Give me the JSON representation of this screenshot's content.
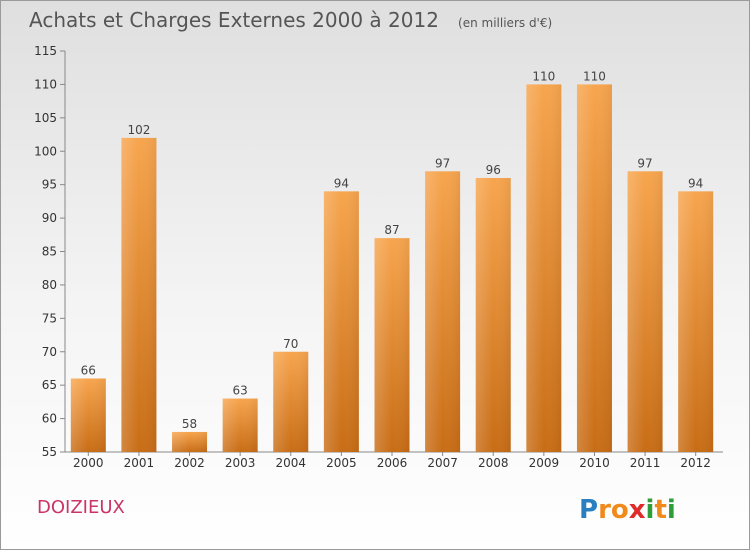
{
  "chart_data": {
    "type": "bar",
    "title": "Achats et Charges Externes 2000 à 2012",
    "subtitle": "(en milliers d'€)",
    "categories": [
      "2000",
      "2001",
      "2002",
      "2003",
      "2004",
      "2005",
      "2006",
      "2007",
      "2008",
      "2009",
      "2010",
      "2011",
      "2012"
    ],
    "values": [
      66,
      102,
      58,
      63,
      70,
      94,
      87,
      97,
      96,
      110,
      110,
      97,
      94
    ],
    "ylim": [
      55,
      115
    ],
    "yticks": [
      55,
      60,
      65,
      70,
      75,
      80,
      85,
      90,
      95,
      100,
      105,
      110,
      115
    ],
    "grid": false,
    "legend": "none",
    "xlabel": "",
    "ylabel": ""
  },
  "commune": "DOIZIEUX",
  "brand": {
    "letters": [
      "P",
      "r",
      "o",
      "x",
      "i",
      "t",
      "i"
    ],
    "colors": [
      "#2a7fc0",
      "#f08a1c",
      "#f08a1c",
      "#e02b2b",
      "#2e9d3a",
      "#f08a1c",
      "#2e9d3a"
    ]
  },
  "colors": {
    "bar_light": "#f7a54e",
    "bar_dark": "#c86d16",
    "commune": "#cc3366"
  }
}
